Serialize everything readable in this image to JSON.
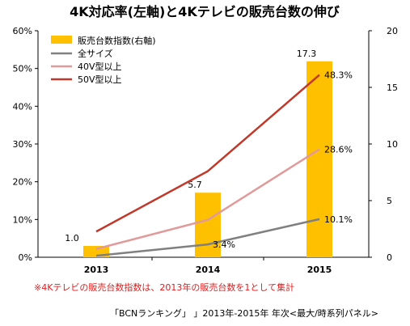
{
  "chart_data": {
    "type": "bar",
    "title": "4K対応率(左軸)と4Kテレビの販売台数の伸び",
    "categories": [
      "2013",
      "2014",
      "2015"
    ],
    "left_axis": {
      "ticks": [
        "0%",
        "10%",
        "20%",
        "30%",
        "40%",
        "50%",
        "60%"
      ],
      "ylim": [
        0,
        60
      ]
    },
    "right_axis": {
      "ticks": [
        "0",
        "5",
        "10",
        "15",
        "20"
      ],
      "ylim": [
        0,
        20
      ]
    },
    "series": [
      {
        "name": "販売台数指数(右軸)",
        "type": "bar",
        "axis": "right",
        "values": [
          1.0,
          5.7,
          17.3
        ],
        "labels": [
          "1.0",
          "5.7",
          "17.3"
        ],
        "color": "#ffc000"
      },
      {
        "name": "全サイズ",
        "type": "line",
        "axis": "left",
        "values": [
          0.4,
          3.4,
          10.1
        ],
        "labels": [
          "",
          "3.4%",
          "10.1%"
        ],
        "color": "#808080"
      },
      {
        "name": "40V型以上",
        "type": "line",
        "axis": "left",
        "values": [
          2.2,
          9.9,
          28.6
        ],
        "labels": [
          "",
          "",
          "28.6%"
        ],
        "color": "#e09a9a"
      },
      {
        "name": "50V型以上",
        "type": "line",
        "axis": "left",
        "values": [
          6.8,
          22.8,
          48.3
        ],
        "labels": [
          "",
          "",
          "48.3%"
        ],
        "color": "#c0392b"
      }
    ],
    "legend_position": "top-left",
    "grid": false
  },
  "footnote": "※4Kテレビの販売台数指数は、2013年の販売台数を1として集計",
  "source": "「BCNランキング」 」2013年-2015年 年次<最大/時系列パネル>"
}
